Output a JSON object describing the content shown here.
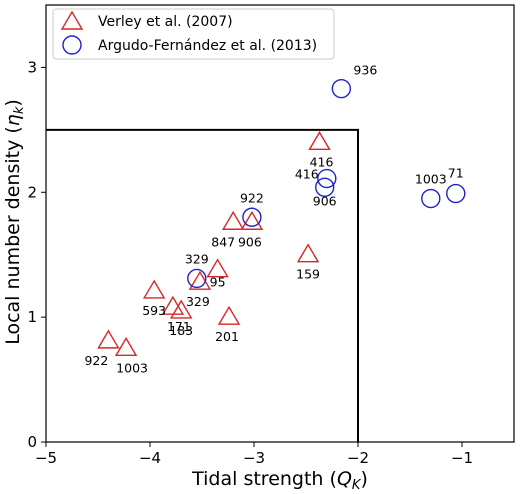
{
  "chart_data": {
    "type": "scatter",
    "xlabel_main": "Tidal strength (",
    "xlabel_sym": "Q",
    "xlabel_sub": "K",
    "xlabel_end": ")",
    "ylabel_main": "Local number density (",
    "ylabel_sym": "η",
    "ylabel_sub": "k",
    "ylabel_end": ")",
    "xlim": [
      -5,
      -0.5
    ],
    "ylim": [
      0,
      3.5
    ],
    "xticks": [
      -5,
      -4,
      -3,
      -2,
      -1
    ],
    "xtick_labels": [
      "−5",
      "−4",
      "−3",
      "−2",
      "−1"
    ],
    "yticks": [
      0,
      1,
      2,
      3
    ],
    "ytick_labels": [
      "0",
      "1",
      "2",
      "3"
    ],
    "legend_position": "top-left",
    "region": {
      "x": [
        -5,
        -2
      ],
      "y": [
        0,
        2.5
      ]
    },
    "series": [
      {
        "name": "Verley et al. (2007)",
        "marker": "triangle",
        "color": "#d62728",
        "points": [
          {
            "x": -4.4,
            "y": 0.81,
            "label": "922"
          },
          {
            "x": -4.23,
            "y": 0.75,
            "label": "1003"
          },
          {
            "x": -3.96,
            "y": 1.21,
            "label": "593"
          },
          {
            "x": -3.78,
            "y": 1.08,
            "label": "171"
          },
          {
            "x": -3.7,
            "y": 1.05,
            "label": "183"
          },
          {
            "x": -3.52,
            "y": 1.28,
            "label": "329"
          },
          {
            "x": -3.35,
            "y": 1.38,
            "label": "95"
          },
          {
            "x": -3.24,
            "y": 1.0,
            "label": "201"
          },
          {
            "x": -3.2,
            "y": 1.76,
            "label": "847"
          },
          {
            "x": -3.02,
            "y": 1.76,
            "label": "906"
          },
          {
            "x": -2.48,
            "y": 1.5,
            "label": "159"
          },
          {
            "x": -2.37,
            "y": 2.4,
            "label": "416"
          }
        ]
      },
      {
        "name": "Argudo-Fernández et al. (2013)",
        "marker": "circle",
        "color": "#1f22c8",
        "points": [
          {
            "x": -3.55,
            "y": 1.31,
            "label": "329"
          },
          {
            "x": -3.02,
            "y": 1.8,
            "label": "922"
          },
          {
            "x": -2.3,
            "y": 2.11,
            "label": "416"
          },
          {
            "x": -2.32,
            "y": 2.04,
            "label": "906"
          },
          {
            "x": -2.16,
            "y": 2.83,
            "label": "936"
          },
          {
            "x": -1.3,
            "y": 1.95,
            "label": "1003"
          },
          {
            "x": -1.06,
            "y": 1.99,
            "label": "71"
          }
        ]
      }
    ]
  }
}
